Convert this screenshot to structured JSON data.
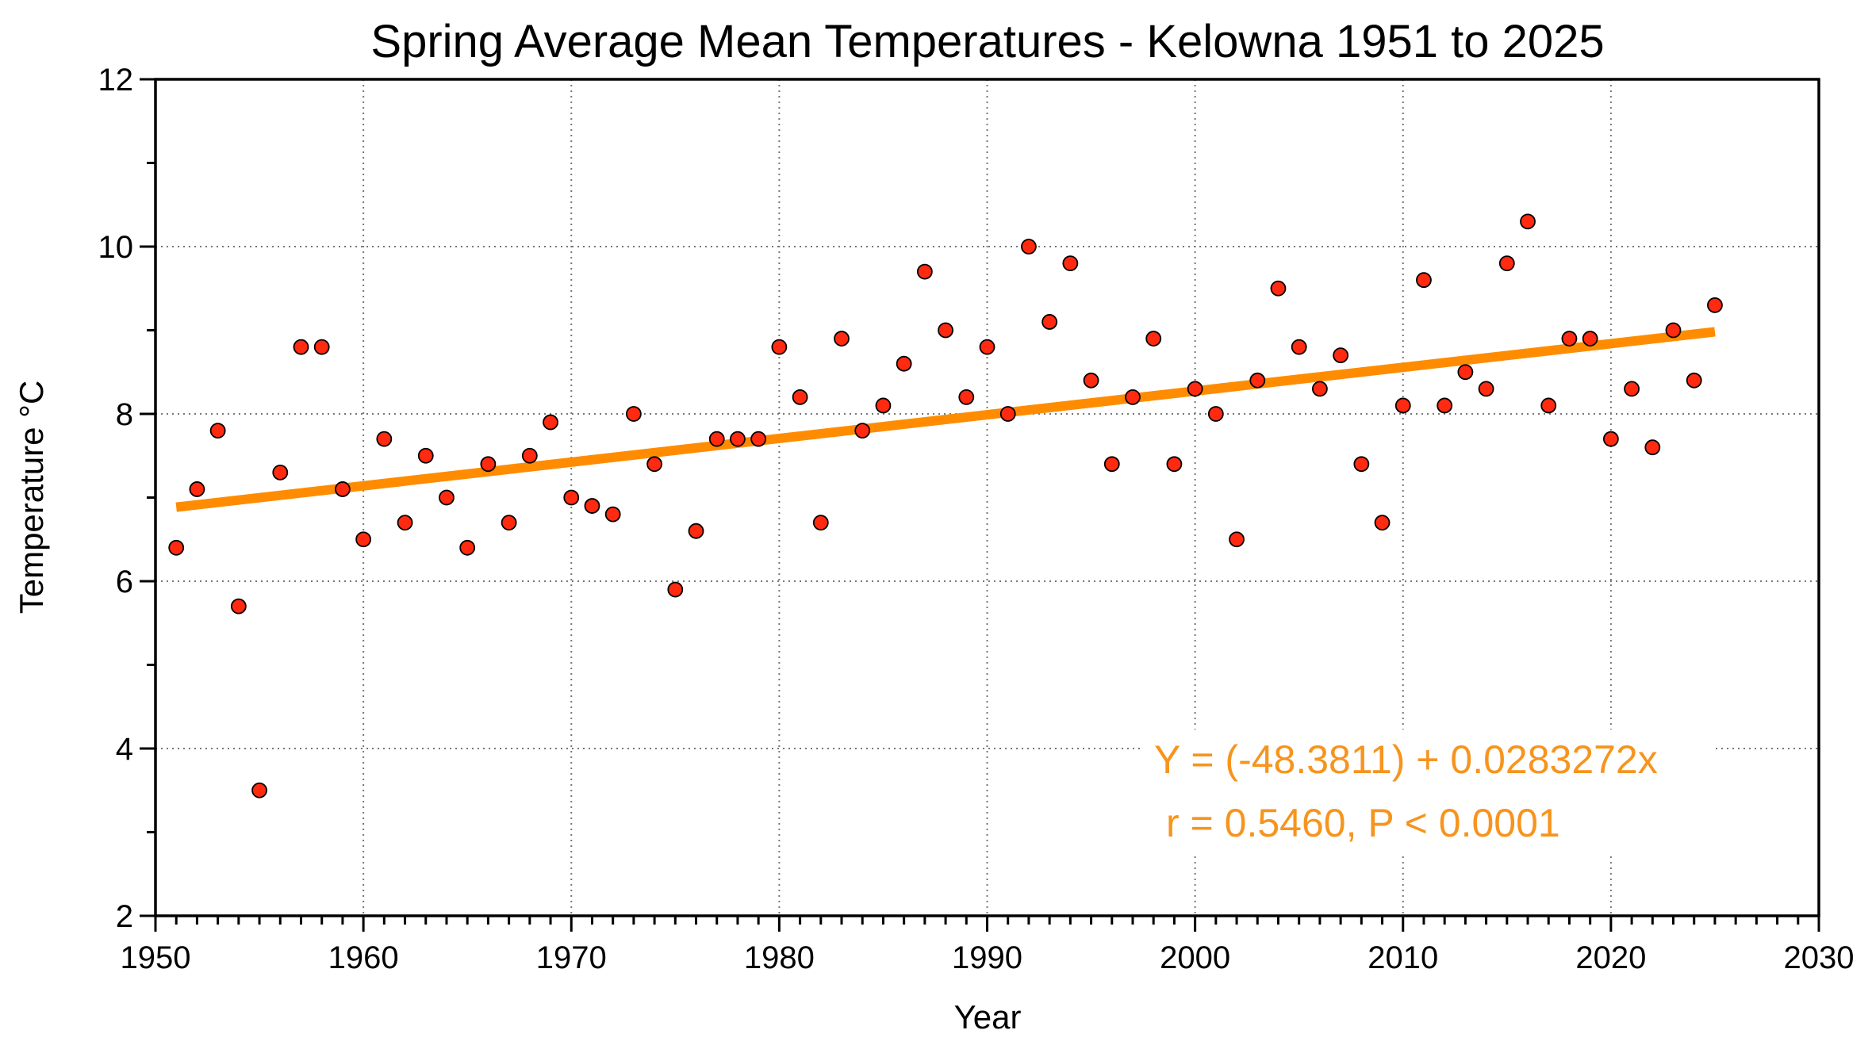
{
  "chart_data": {
    "type": "scatter",
    "title": "Spring Average Mean Temperatures - Kelowna 1951 to 2025",
    "xlabel": "Year",
    "ylabel": "Temperature °C",
    "xlim": [
      1950,
      2030
    ],
    "ylim": [
      2,
      12
    ],
    "x_ticks": [
      1950,
      1960,
      1970,
      1980,
      1990,
      2000,
      2010,
      2020,
      2030
    ],
    "x_tick_labels": [
      "1950",
      "1960",
      "1970",
      "1980",
      "1990",
      "2000",
      "2010",
      "2020",
      "2030"
    ],
    "x_minor_step": 1,
    "y_ticks": [
      2,
      4,
      6,
      8,
      10,
      12
    ],
    "y_tick_labels": [
      "2",
      "4",
      "6",
      "8",
      "10",
      "12"
    ],
    "y_minor_step": 1,
    "grid": true,
    "colors": {
      "points": "#FF2A10",
      "trend": "#FF8C00",
      "annotation": "#F7941D"
    },
    "series": [
      {
        "name": "Spring average mean temperature",
        "x": [
          1951,
          1952,
          1953,
          1954,
          1955,
          1956,
          1957,
          1958,
          1959,
          1960,
          1961,
          1962,
          1963,
          1964,
          1965,
          1966,
          1967,
          1968,
          1969,
          1970,
          1971,
          1972,
          1973,
          1974,
          1975,
          1976,
          1977,
          1978,
          1979,
          1980,
          1981,
          1982,
          1983,
          1984,
          1985,
          1986,
          1987,
          1988,
          1989,
          1990,
          1991,
          1992,
          1993,
          1994,
          1995,
          1996,
          1997,
          1998,
          1999,
          2000,
          2001,
          2002,
          2003,
          2004,
          2005,
          2006,
          2007,
          2008,
          2009,
          2010,
          2011,
          2012,
          2013,
          2014,
          2015,
          2016,
          2017,
          2018,
          2019,
          2020,
          2021,
          2022,
          2023,
          2024,
          2025
        ],
        "y": [
          6.4,
          7.1,
          7.8,
          5.7,
          3.5,
          7.3,
          8.8,
          8.8,
          7.1,
          6.5,
          7.7,
          6.7,
          7.5,
          7.0,
          6.4,
          7.4,
          6.7,
          7.5,
          7.9,
          7.0,
          6.9,
          6.8,
          8.0,
          7.4,
          5.9,
          6.6,
          7.7,
          7.7,
          7.7,
          8.8,
          8.2,
          6.7,
          8.9,
          7.8,
          8.1,
          8.6,
          9.7,
          9.0,
          8.2,
          8.8,
          8.0,
          10.0,
          9.1,
          9.8,
          8.4,
          7.4,
          8.2,
          8.9,
          7.4,
          8.3,
          8.0,
          6.5,
          8.4,
          9.5,
          8.8,
          8.3,
          8.7,
          7.4,
          6.7,
          8.1,
          9.6,
          8.1,
          8.5,
          8.3,
          9.8,
          10.3,
          8.1,
          8.9,
          8.9,
          7.7,
          8.3,
          7.6,
          9.0,
          8.4,
          9.3
        ]
      }
    ],
    "trend_line": {
      "intercept": -48.3811,
      "slope": 0.0283272,
      "x_range": [
        1951,
        2025
      ]
    },
    "annotations": [
      "Y = (-48.3811) + 0.0283272x",
      "r = 0.5460, P < 0.0001"
    ],
    "legend": "none"
  }
}
